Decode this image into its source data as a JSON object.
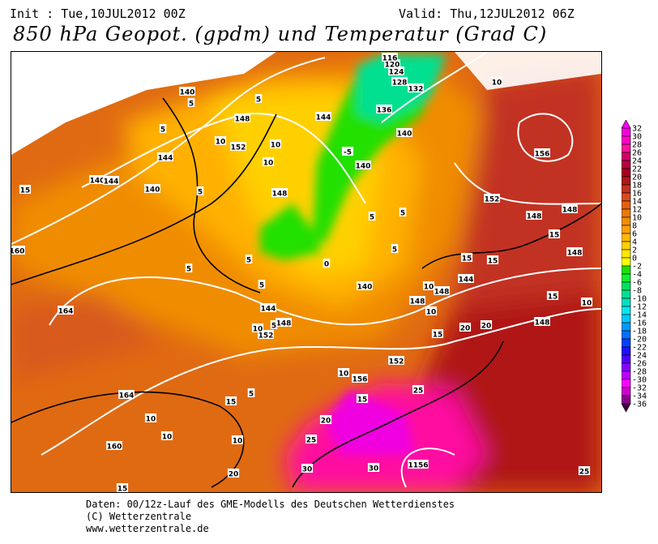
{
  "header": {
    "init": "Init : Tue,10JUL2012 00Z",
    "valid": "Valid: Thu,12JUL2012 06Z",
    "title": "850 hPa Geopot. (gpdm) und Temperatur (Grad C)"
  },
  "legend": {
    "labels": [
      "32",
      "30",
      "28",
      "26",
      "24",
      "22",
      "20",
      "18",
      "16",
      "14",
      "12",
      "10",
      "8",
      "6",
      "4",
      "2",
      "0",
      "-2",
      "-4",
      "-6",
      "-8",
      "-10",
      "-12",
      "-14",
      "-16",
      "-18",
      "-20",
      "-22",
      "-24",
      "-26",
      "-28",
      "-30",
      "-32",
      "-34",
      "-36"
    ],
    "colors": [
      "#f000e0",
      "#ff00c8",
      "#ff10a0",
      "#d00068",
      "#b80040",
      "#a8001c",
      "#b01818",
      "#c23220",
      "#d84a20",
      "#e26010",
      "#e87808",
      "#f08c00",
      "#ffa000",
      "#ffb800",
      "#ffd000",
      "#ffe800",
      "#ffff00",
      "#20e000",
      "#10ee30",
      "#00e060",
      "#00e090",
      "#00e0c0",
      "#00e8f0",
      "#00c8ff",
      "#0098ff",
      "#0070ff",
      "#0040ff",
      "#2010ff",
      "#5000ff",
      "#8800ff",
      "#c000ff",
      "#ff00ff",
      "#d000d0",
      "#900090",
      "#600060"
    ],
    "top_arrow_color": "#ff00ff",
    "bottom_arrow_color": "#400040"
  },
  "map": {
    "geopotential_labels": [
      "116",
      "120",
      "124",
      "128",
      "132",
      "136",
      "140",
      "144",
      "148",
      "152",
      "156",
      "160",
      "164"
    ],
    "temperature_labels": [
      "-5",
      "0",
      "5",
      "10",
      "15",
      "20",
      "25",
      "30"
    ],
    "placed": [
      [
        "140",
        230,
        112
      ],
      [
        "148",
        298,
        145
      ],
      [
        "152",
        293,
        180
      ],
      [
        "144",
        203,
        193
      ],
      [
        "140",
        119,
        221
      ],
      [
        "144",
        136,
        222
      ],
      [
        "140",
        187,
        232
      ],
      [
        "148",
        344,
        237
      ],
      [
        "144",
        398,
        143
      ],
      [
        "136",
        473,
        134
      ],
      [
        "140",
        498,
        163
      ],
      [
        "140",
        447,
        203
      ],
      [
        "132",
        512,
        108
      ],
      [
        "128",
        492,
        100
      ],
      [
        "124",
        488,
        87
      ],
      [
        "120",
        483,
        78
      ],
      [
        "116",
        480,
        70
      ],
      [
        "156",
        668,
        188
      ],
      [
        "148",
        658,
        265
      ],
      [
        "148",
        702,
        257
      ],
      [
        "152",
        606,
        244
      ],
      [
        "148",
        708,
        310
      ],
      [
        "144",
        574,
        343
      ],
      [
        "148",
        514,
        370
      ],
      [
        "148",
        544,
        358
      ],
      [
        "140",
        449,
        352
      ],
      [
        "144",
        330,
        379
      ],
      [
        "148",
        349,
        397
      ],
      [
        "152",
        327,
        412
      ],
      [
        "148",
        668,
        396
      ],
      [
        "152",
        488,
        444
      ],
      [
        "156",
        443,
        466
      ],
      [
        "164",
        80,
        382
      ],
      [
        "164",
        155,
        486
      ],
      [
        "160",
        140,
        549
      ],
      [
        "160",
        20,
        308
      ],
      [
        "1156",
        515,
        572
      ],
      [
        "5",
        200,
        158
      ],
      [
        "5",
        246,
        235
      ],
      [
        "5",
        232,
        330
      ],
      [
        "5",
        306,
        319
      ],
      [
        "5",
        322,
        350
      ],
      [
        "5",
        337,
        400
      ],
      [
        "5",
        309,
        484
      ],
      [
        "5",
        235,
        126
      ],
      [
        "5",
        318,
        121
      ],
      [
        "5",
        458,
        266
      ],
      [
        "5",
        496,
        261
      ],
      [
        "5",
        486,
        306
      ],
      [
        "10",
        271,
        173
      ],
      [
        "10",
        339,
        177
      ],
      [
        "10",
        330,
        199
      ],
      [
        "10",
        528,
        352
      ],
      [
        "10",
        317,
        404
      ],
      [
        "10",
        531,
        383
      ],
      [
        "10",
        423,
        459
      ],
      [
        "10",
        185,
        515
      ],
      [
        "10",
        205,
        537
      ],
      [
        "10",
        292,
        542
      ],
      [
        "10",
        612,
        100
      ],
      [
        "10",
        723,
        372
      ],
      [
        "15",
        30,
        233
      ],
      [
        "15",
        575,
        317
      ],
      [
        "15",
        607,
        320
      ],
      [
        "15",
        683,
        288
      ],
      [
        "15",
        681,
        364
      ],
      [
        "15",
        284,
        494
      ],
      [
        "15",
        539,
        411
      ],
      [
        "15",
        446,
        491
      ],
      [
        "15",
        150,
        601
      ],
      [
        "20",
        573,
        403
      ],
      [
        "20",
        599,
        400
      ],
      [
        "20",
        401,
        517
      ],
      [
        "20",
        287,
        583
      ],
      [
        "25",
        515,
        480
      ],
      [
        "25",
        720,
        580
      ],
      [
        "25",
        383,
        541
      ],
      [
        "30",
        378,
        577
      ],
      [
        "30",
        460,
        576
      ],
      [
        "-5",
        428,
        186
      ],
      [
        "0",
        402,
        324
      ]
    ]
  },
  "footer": {
    "line1": "Daten: 00/12z-Lauf des GME-Modells des Deutschen Wetterdienstes",
    "line2": "(C) Wetterzentrale",
    "line3": "www.wetterzentrale.de"
  }
}
